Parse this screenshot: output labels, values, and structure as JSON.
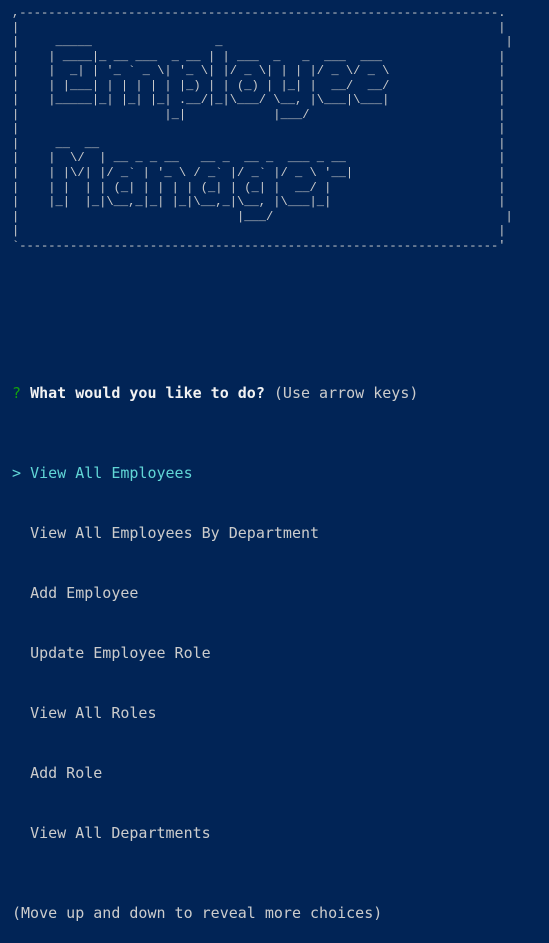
{
  "banner": {
    "art": ",------------------------------------------------------------------.\n|                                                                  |\n|     _____                 _                                       |\n|    | ____|_ __ ___  _ __ | | ___  _   _  ___  ___                |\n|    |  _| | '_ ` _ \\| '_ \\| |/ _ \\| | | |/ _ \\/ _ \\               |\n|    | |___| | | | | | |_) | | (_) | |_| |  __/  __/               |\n|    |_____|_| |_| |_| .__/|_|\\___/ \\__, |\\___|\\___|               |\n|                    |_|            |___/                          |\n|                                                                  |\n|     __  __                                                       |\n|    |  \\/  | __ _ _ __   __ _  __ _  ___ _ __                     |\n|    | |\\/| |/ _` | '_ \\ / _` |/ _` |/ _ \\ '__|                    |\n|    | |  | | (_| | | | | (_| | (_| |  __/ |                       |\n|    |_|  |_|\\__,_|_| |_|\\__,_|\\__, |\\___|_|                       |\n|                              |___/                                |\n|                                                                  |\n`------------------------------------------------------------------'"
  },
  "prompt": {
    "qmark": "?",
    "question": "What would you like to do?",
    "hint": "(Use arrow keys)",
    "pointer": ">",
    "choices": [
      "View All Employees",
      "View All Employees By Department",
      "Add Employee",
      "Update Employee Role",
      "View All Roles",
      "Add Role",
      "View All Departments"
    ],
    "selected_index": 0,
    "footer": "(Move up and down to reveal more choices)"
  },
  "colors": {
    "background": "#012456",
    "text": "#cccccc",
    "selected": "#61d6d6",
    "qmark": "#13a10e"
  }
}
